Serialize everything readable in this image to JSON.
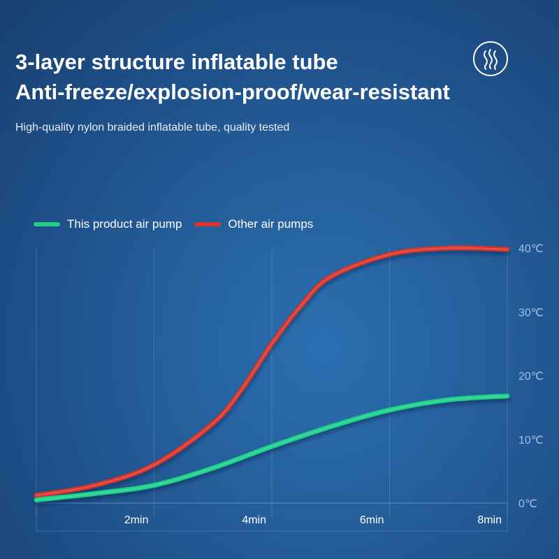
{
  "header": {
    "title_line1": "3-layer structure inflatable tube",
    "title_line2": "Anti-freeze/explosion-proof/wear-resistant",
    "subtitle": "High-quality nylon braided inflatable tube, quality tested",
    "icon": "heat-waves-icon"
  },
  "legend": {
    "items": [
      {
        "label": "This product air pump",
        "color": "#1fd08a"
      },
      {
        "label": "Other air pumps",
        "color": "#d8342a"
      }
    ]
  },
  "chart_data": {
    "type": "line",
    "title": "",
    "xlabel": "",
    "ylabel": "",
    "x_ticks": [
      "2min",
      "4min",
      "6min",
      "8min"
    ],
    "y_ticks": [
      "0℃",
      "10℃",
      "20℃",
      "30℃",
      "40℃"
    ],
    "xlim": [
      0,
      8
    ],
    "ylim": [
      0,
      40
    ],
    "grid": true,
    "legend_position": "top-left",
    "series": [
      {
        "name": "This product air pump",
        "color": "#1fd08a",
        "x": [
          0,
          1,
          2,
          3,
          4,
          5,
          6,
          7,
          8
        ],
        "y": [
          0.5,
          1.5,
          2.8,
          5.5,
          8.9,
          12.0,
          14.6,
          16.2,
          16.8
        ]
      },
      {
        "name": "Other air pumps",
        "color": "#d8342a",
        "x": [
          0,
          1,
          2,
          3,
          3.5,
          4,
          4.5,
          5,
          6,
          7,
          8
        ],
        "y": [
          1.2,
          2.8,
          6.0,
          12.5,
          18.0,
          25.0,
          31.0,
          35.5,
          39.0,
          40.0,
          39.8
        ]
      }
    ]
  }
}
